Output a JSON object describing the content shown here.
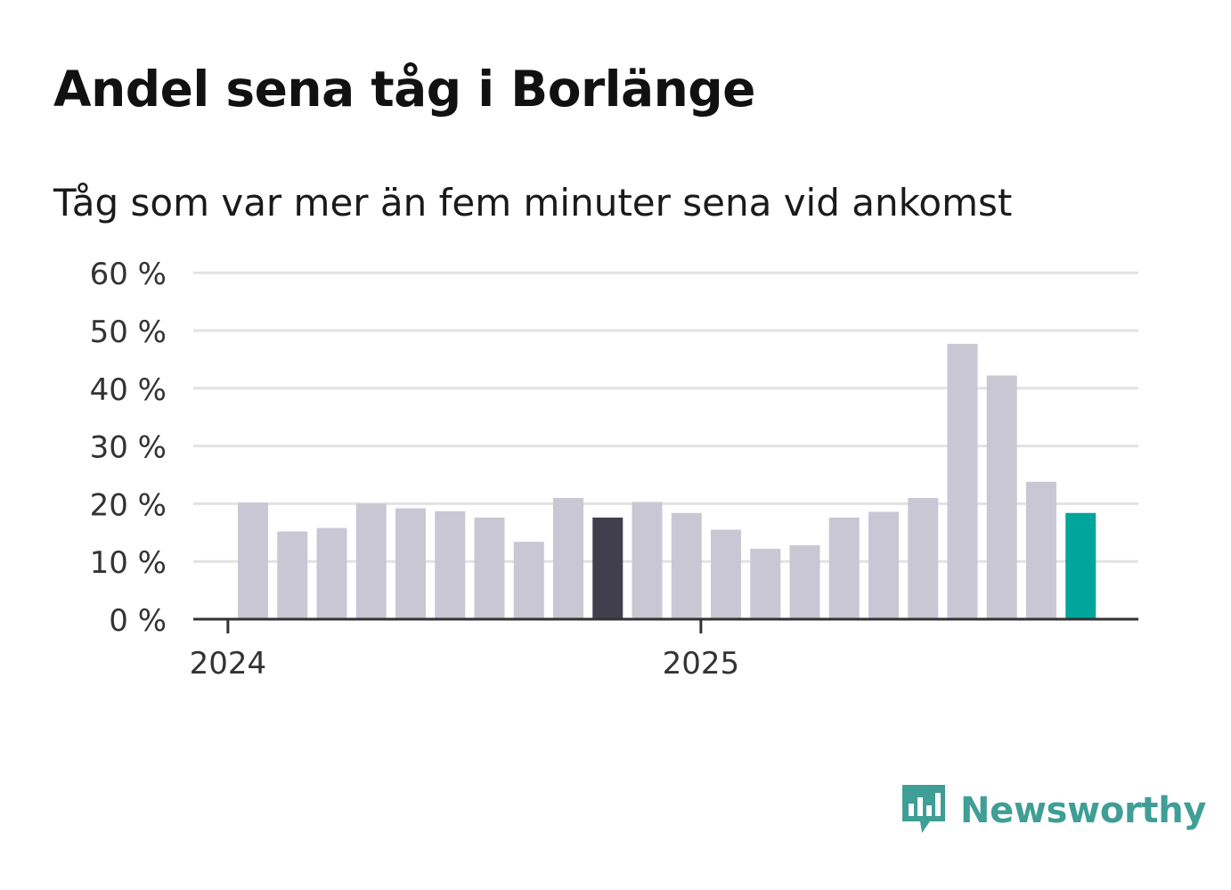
{
  "title": "Andel sena tåg i Borlänge",
  "subtitle": "Tåg som var mer än fem minuter sena vid ankomst",
  "brand": {
    "name": "Newsworthy",
    "logo_icon": "newsworthy-bar-chart-speech-bubble-icon"
  },
  "colors": {
    "bar": "#c9c7d3",
    "highlight_previous_year": "#413f4d",
    "highlight_latest": "#00a59b",
    "grid": "#e2e2e2",
    "axis": "#333333",
    "brand": "#3f9e96"
  },
  "chart_data": {
    "type": "bar",
    "title": "Andel sena tåg i Borlänge",
    "subtitle": "Tåg som var mer än fem minuter sena vid ankomst",
    "xlabel": "",
    "ylabel": "",
    "x_ticks": [
      "2024",
      "2025"
    ],
    "y_ticks": [
      "0 %",
      "10 %",
      "20 %",
      "30 %",
      "40 %",
      "50 %",
      "60 %"
    ],
    "ylim": [
      0,
      60
    ],
    "grid": true,
    "legend": "none",
    "categories": [
      "2024-01",
      "2024-02",
      "2024-03",
      "2024-04",
      "2024-05",
      "2024-06",
      "2024-07",
      "2024-08",
      "2024-09",
      "2024-10",
      "2024-11",
      "2024-12",
      "2025-01",
      "2025-02",
      "2025-03",
      "2025-04",
      "2025-05",
      "2025-06",
      "2025-07",
      "2025-08",
      "2025-09",
      "2025-10"
    ],
    "values": [
      20.2,
      15.2,
      15.8,
      20.0,
      19.2,
      18.7,
      17.6,
      13.4,
      21.0,
      17.6,
      20.3,
      18.4,
      15.5,
      12.2,
      12.8,
      17.6,
      18.6,
      21.0,
      47.7,
      42.2,
      23.8,
      18.4
    ],
    "highlight": {
      "2024-10": "previous-year-same-month",
      "2025-10": "latest"
    }
  }
}
